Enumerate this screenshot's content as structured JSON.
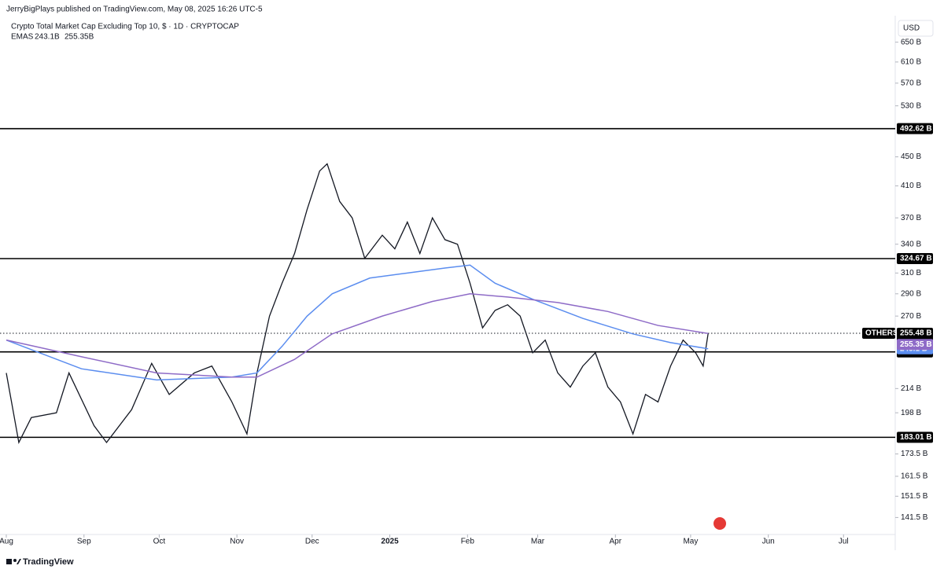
{
  "header": {
    "publisher": "JerryBigPlays published on TradingView.com, May 08, 2025 16:26 UTC-5",
    "brand": "TradingView"
  },
  "chart_data": {
    "type": "line",
    "title": "Crypto Total Market Cap Excluding Top 10, $ · 1D · CRYPTOCAP",
    "indicator": "EMAS",
    "currency": "USD",
    "log_scale": true,
    "xlim": [
      0,
      354
    ],
    "xticks": [
      {
        "value": 0,
        "label": "Aug"
      },
      {
        "value": 31,
        "label": "Sep"
      },
      {
        "value": 61,
        "label": "Oct"
      },
      {
        "value": 92,
        "label": "Nov"
      },
      {
        "value": 122,
        "label": "Dec"
      },
      {
        "value": 153,
        "label": "2025"
      },
      {
        "value": 184,
        "label": "Feb"
      },
      {
        "value": 212,
        "label": "Mar"
      },
      {
        "value": 243,
        "label": "Apr"
      },
      {
        "value": 273,
        "label": "May"
      },
      {
        "value": 304,
        "label": "Jun"
      },
      {
        "value": 334,
        "label": "Jul"
      }
    ],
    "ylim": [
      134,
      690
    ],
    "yticks": [
      {
        "value": 650,
        "label": "650 B"
      },
      {
        "value": 610,
        "label": "610 B"
      },
      {
        "value": 570,
        "label": "570 B"
      },
      {
        "value": 530,
        "label": "530 B"
      },
      {
        "value": 450,
        "label": "450 B"
      },
      {
        "value": 410,
        "label": "410 B"
      },
      {
        "value": 370,
        "label": "370 B"
      },
      {
        "value": 340,
        "label": "340 B"
      },
      {
        "value": 310,
        "label": "310 B"
      },
      {
        "value": 290,
        "label": "290 B"
      },
      {
        "value": 270,
        "label": "270 B"
      },
      {
        "value": 214,
        "label": "214 B"
      },
      {
        "value": 198,
        "label": "198 B"
      },
      {
        "value": 173.5,
        "label": "173.5 B"
      },
      {
        "value": 161.5,
        "label": "161.5 B"
      },
      {
        "value": 151.5,
        "label": "151.5 B"
      },
      {
        "value": 141.5,
        "label": "141.5 B"
      }
    ],
    "levels": [
      {
        "value": 492.62,
        "label": "492.62 B"
      },
      {
        "value": 324.67,
        "label": "324.67 B"
      },
      {
        "value": 240.68,
        "label": "240.68 B"
      },
      {
        "value": 183.01,
        "label": "183.01 B"
      }
    ],
    "last_price": {
      "symbol": "OTHERS",
      "value": 255.48,
      "label": "255.48 B",
      "countdown": "02:33:06"
    },
    "series": [
      {
        "color": "#131722",
        "x": [
          0,
          5,
          10,
          20,
          25,
          35,
          40,
          50,
          58,
          65,
          75,
          82,
          90,
          96,
          100,
          105,
          110,
          115,
          120,
          125,
          128,
          133,
          138,
          143,
          150,
          155,
          160,
          165,
          170,
          175,
          180,
          185,
          190,
          195,
          200,
          205,
          210,
          215,
          220,
          225,
          230,
          235,
          240,
          245,
          250,
          255,
          260,
          265,
          270,
          275,
          278,
          280
        ],
        "values": [
          225,
          180,
          195,
          198,
          225,
          190,
          180,
          200,
          232,
          210,
          225,
          230,
          205,
          185,
          225,
          270,
          300,
          330,
          380,
          430,
          440,
          390,
          370,
          325,
          350,
          335,
          365,
          330,
          370,
          345,
          340,
          300,
          260,
          275,
          280,
          270,
          240,
          250,
          225,
          215,
          230,
          240,
          215,
          205,
          185,
          210,
          205,
          230,
          250,
          240,
          230,
          255.48
        ]
      },
      {
        "color": "#5b8def",
        "legend_label": "243.1B",
        "axis_label": "243.1 B",
        "x": [
          0,
          30,
          60,
          90,
          100,
          110,
          120,
          130,
          145,
          160,
          175,
          185,
          195,
          210,
          230,
          250,
          265,
          280
        ],
        "values": [
          250,
          228,
          220,
          222,
          225,
          245,
          270,
          290,
          305,
          310,
          315,
          318,
          300,
          285,
          268,
          255,
          248,
          243.1
        ]
      },
      {
        "color": "#8e6bc7",
        "legend_label": "255.35B",
        "axis_label": "255.35 B",
        "x": [
          0,
          30,
          60,
          90,
          100,
          115,
          130,
          150,
          170,
          185,
          200,
          220,
          240,
          260,
          280
        ],
        "values": [
          250,
          237,
          225,
          222,
          222,
          235,
          255,
          270,
          283,
          290,
          287,
          282,
          274,
          262,
          255.35
        ]
      }
    ]
  }
}
